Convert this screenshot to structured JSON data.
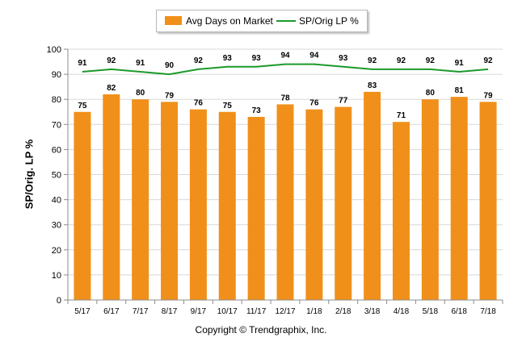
{
  "chart_data": {
    "type": "bar",
    "categories": [
      "5/17",
      "6/17",
      "7/17",
      "8/17",
      "9/17",
      "10/17",
      "11/17",
      "12/17",
      "1/18",
      "2/18",
      "3/18",
      "4/18",
      "5/18",
      "6/18",
      "7/18"
    ],
    "series": [
      {
        "name": "Avg Days on Market",
        "type": "bar",
        "color": "#f0901a",
        "values": [
          75,
          82,
          80,
          79,
          76,
          75,
          73,
          78,
          76,
          77,
          83,
          71,
          80,
          81,
          79
        ]
      },
      {
        "name": "SP/Orig LP %",
        "type": "line",
        "color": "#1a9a2a",
        "values": [
          91,
          92,
          91,
          90,
          92,
          93,
          93,
          94,
          94,
          93,
          92,
          92,
          92,
          91,
          92
        ]
      }
    ],
    "ylabel": "SP/Orig. LP %",
    "ylim": [
      0,
      100
    ],
    "yticks": [
      0,
      10,
      20,
      30,
      40,
      50,
      60,
      70,
      80,
      90,
      100
    ],
    "grid": true,
    "legend_position": "top-center"
  },
  "legend": {
    "bar_label": "Avg Days on Market",
    "line_label": "SP/Orig LP %"
  },
  "footer": {
    "copyright": "Copyright © Trendgraphix, Inc."
  },
  "colors": {
    "bar": "#f0901a",
    "line": "#1a9a2a",
    "grid": "#d8d8d8",
    "axis": "#8c8c8c"
  }
}
